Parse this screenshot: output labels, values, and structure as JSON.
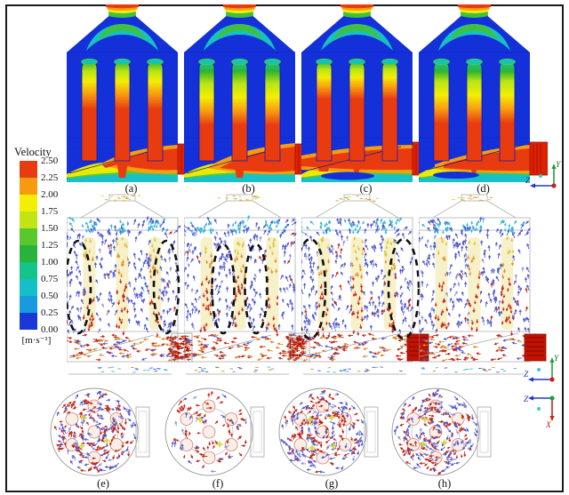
{
  "figure": {
    "description": "CFD simulation figure: velocity contours, side-view velocity vectors with highlighted circulation zones, and top-view velocity vectors for four cases",
    "background": "#ffffff",
    "frame_color": "#1a1a1a"
  },
  "colorbar": {
    "title": "Velocity",
    "units": "[m·s⁻¹]",
    "ticks": [
      "2.50",
      "2.25",
      "2.00",
      "1.75",
      "1.50",
      "1.25",
      "1.00",
      "0.75",
      "0.50",
      "0.25",
      "0.00"
    ],
    "band_colors_top_to_bottom": [
      "#e83c10",
      "#f89a10",
      "#f4ee04",
      "#c0e414",
      "#58c82c",
      "#28b43c",
      "#14c48a",
      "#14c0c8",
      "#189ae0",
      "#1838d8"
    ]
  },
  "contour_panels": {
    "labels": [
      "(a)",
      "(b)",
      "(c)",
      "(d)"
    ]
  },
  "side_vector_panels": {
    "highlight_ellipses": [
      {
        "panel": "a",
        "count": 2,
        "position": "near side walls"
      },
      {
        "panel": "b",
        "count": 2,
        "position": "between tubes"
      },
      {
        "panel": "c",
        "count": 2,
        "position": "near side walls, large"
      },
      {
        "panel": "d",
        "count": 0,
        "position": "none"
      }
    ]
  },
  "top_view_panels": {
    "labels": [
      "(e)",
      "(f)",
      "(g)",
      "(h)"
    ]
  },
  "axes_triads": {
    "top": {
      "up_label": "Y",
      "left_label": "Z"
    },
    "middle": {
      "up_label": "Y",
      "left_label": "Z"
    },
    "bottom": {
      "left_label": "Z",
      "down_label": "X"
    },
    "axis_colors": {
      "x": "#cc2214",
      "y": "#22a03c",
      "z": "#2038c8",
      "outplane_dot": "#38c8d8"
    }
  }
}
